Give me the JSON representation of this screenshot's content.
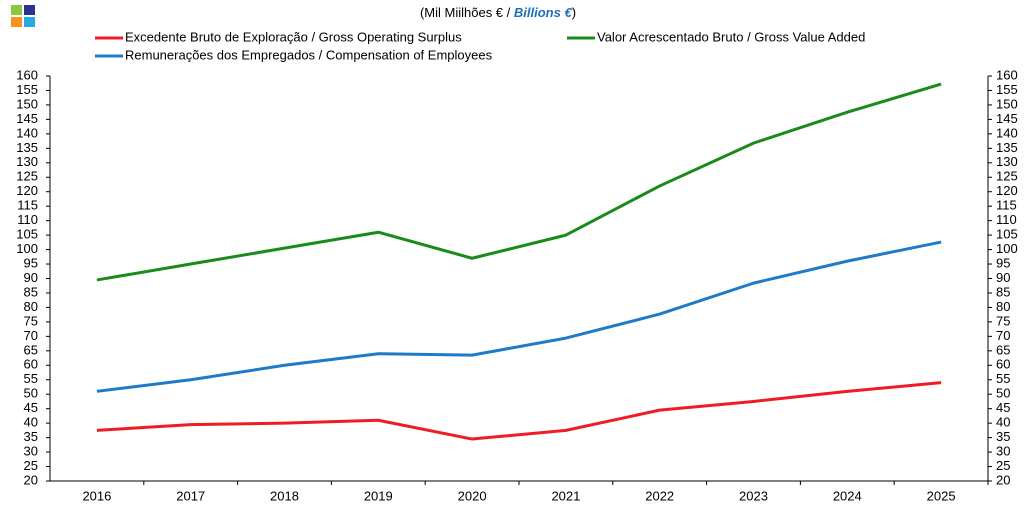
{
  "chart_data": {
    "type": "line",
    "title": [
      "(Mil Miilhões € / ",
      "Billions €",
      ")"
    ],
    "categories": [
      "2016",
      "2017",
      "2018",
      "2019",
      "2020",
      "2021",
      "2022",
      "2023",
      "2024",
      "2025"
    ],
    "series": [
      {
        "name": "Excedente Bruto de Exploração / Gross Operating Surplus",
        "color": "#ee1c25",
        "values": [
          37.5,
          39.5,
          40,
          41,
          34.5,
          37.5,
          44.5,
          47.5,
          51,
          54
        ]
      },
      {
        "name": "Valor Acrescentado Bruto / Gross Value Added",
        "color": "#1a8a1a",
        "values": [
          89.5,
          95,
          100.5,
          106,
          97,
          105,
          122,
          136.8,
          147.5,
          157.2
        ]
      },
      {
        "name": "Remunerações dos Empregados / Compensation of Employees",
        "color": "#1f7ac8",
        "values": [
          51,
          55,
          60,
          64,
          63.5,
          69.4,
          77.7,
          88.4,
          96,
          102.6
        ]
      }
    ],
    "ylim": [
      20,
      160
    ],
    "yticks": [
      20,
      25,
      30,
      35,
      40,
      45,
      50,
      55,
      60,
      65,
      70,
      75,
      80,
      85,
      90,
      95,
      100,
      105,
      110,
      115,
      120,
      125,
      130,
      135,
      140,
      145,
      150,
      155,
      160
    ],
    "y2lim": [
      20,
      160
    ],
    "y2ticks": [
      20,
      25,
      30,
      35,
      40,
      45,
      50,
      55,
      60,
      65,
      70,
      75,
      80,
      85,
      90,
      95,
      100,
      105,
      110,
      115,
      120,
      125,
      130,
      135,
      140,
      145,
      150,
      155,
      160
    ]
  }
}
